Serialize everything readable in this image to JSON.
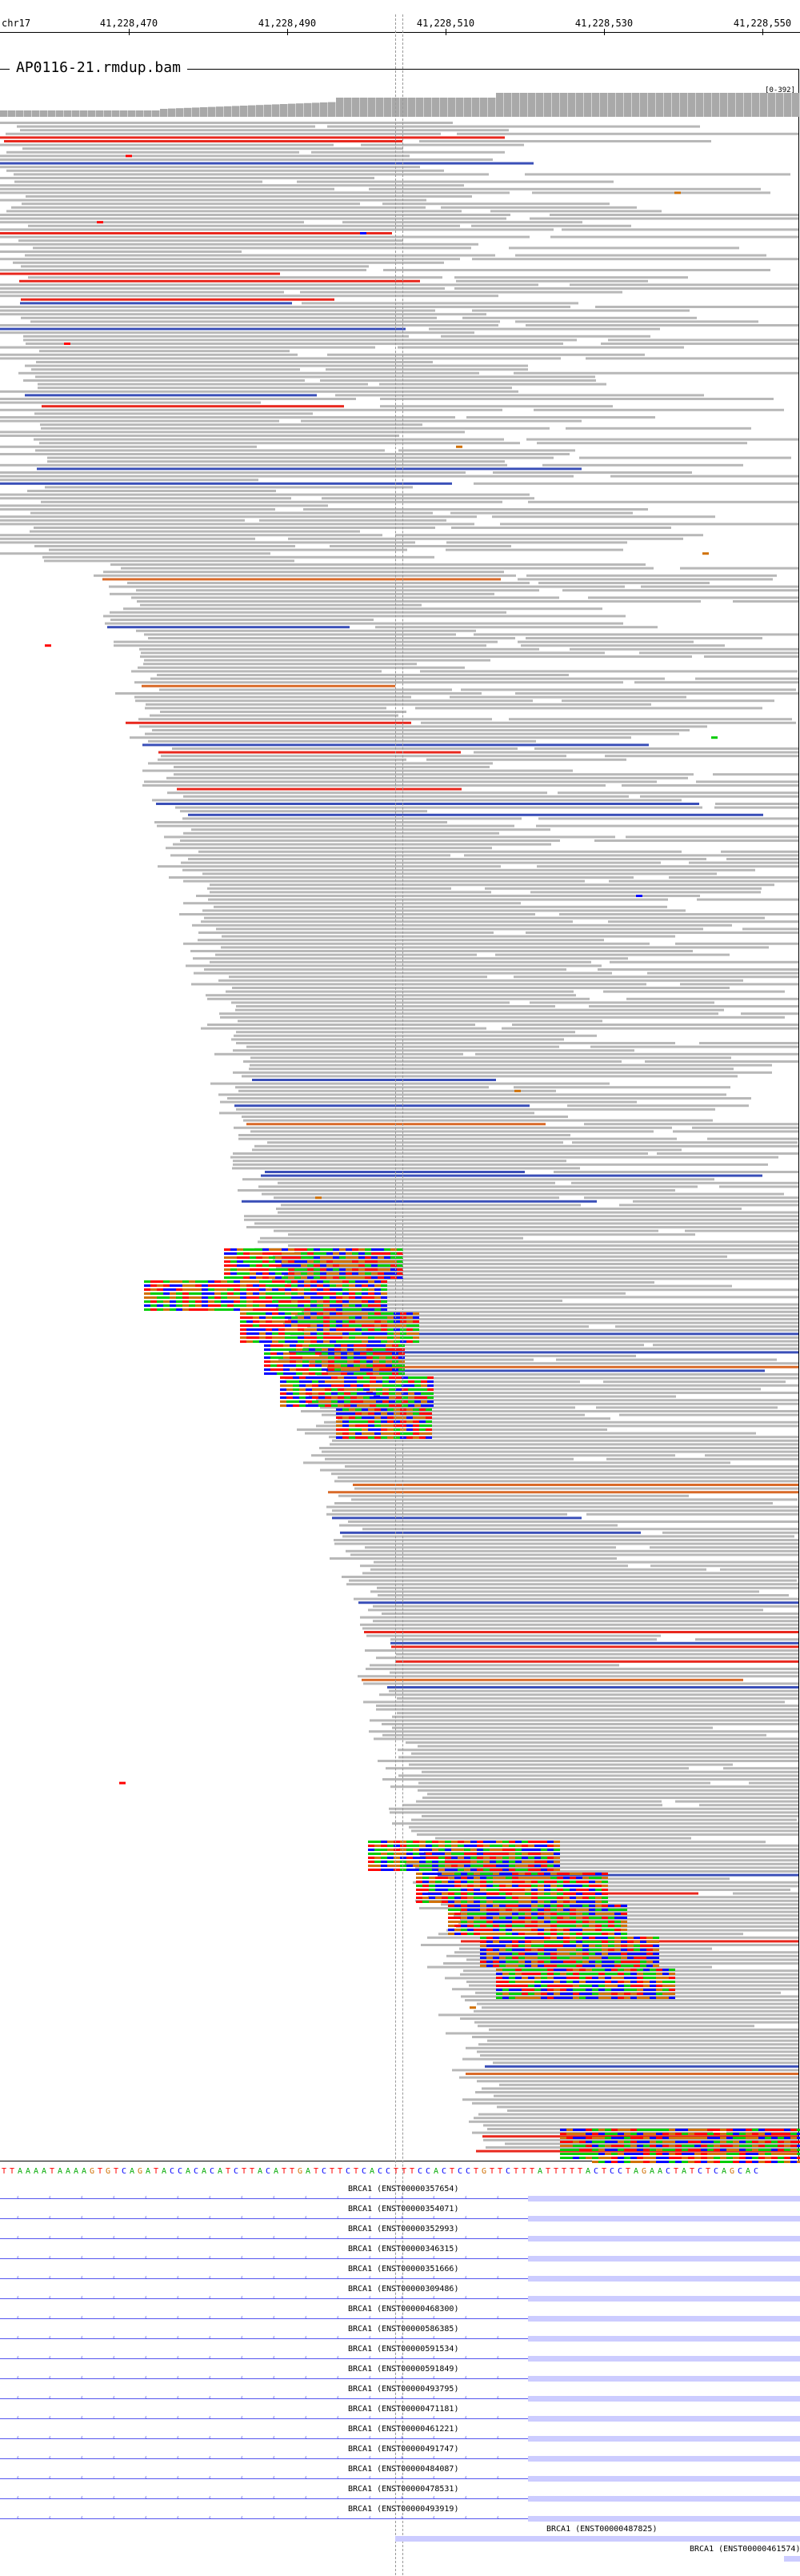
{
  "ruler": {
    "chromosome": "chr17",
    "ticks": [
      "41,228,470",
      "41,228,490",
      "41,228,510",
      "41,228,530",
      "41,228,550"
    ]
  },
  "alignment_track": {
    "title": "AP0116-21.rmdup.bam",
    "coverage_range": "[0-392]"
  },
  "colors": {
    "read": "#b8b8b8",
    "mismatch_a": "#00cc00",
    "mismatch_c": "#0000ff",
    "mismatch_g": "#d17105",
    "mismatch_t": "#ff0000",
    "insert_blue": "#3a4fb8",
    "insert_red": "#e8281e",
    "insert_orange": "#d96b2a",
    "insert_yellow": "#e8c020",
    "insert_lightblue": "#7fb0e0",
    "insert_purple": "#7060b8",
    "gene": "#5555ee",
    "exon": "#ccccff"
  },
  "sequence": "TTAAAATAAAAGTGTCAGATACCACACATCTTACATTGATCTTCTCACCTTTCCACTCCTGTTCTTTATTTTTACTCCTAGAACTATCTCAGCAC",
  "genes": [
    {
      "label": "BRCA1 (ENST00000357654)"
    },
    {
      "label": "BRCA1 (ENST00000354071)"
    },
    {
      "label": "BRCA1 (ENST00000352993)"
    },
    {
      "label": "BRCA1 (ENST00000346315)"
    },
    {
      "label": "BRCA1 (ENST00000351666)"
    },
    {
      "label": "BRCA1 (ENST00000309486)"
    },
    {
      "label": "BRCA1 (ENST00000468300)"
    },
    {
      "label": "BRCA1 (ENST00000586385)"
    },
    {
      "label": "BRCA1 (ENST00000591534)"
    },
    {
      "label": "BRCA1 (ENST00000591849)"
    },
    {
      "label": "BRCA1 (ENST00000493795)"
    },
    {
      "label": "BRCA1 (ENST00000471181)"
    },
    {
      "label": "BRCA1 (ENST00000461221)"
    },
    {
      "label": "BRCA1 (ENST00000491747)"
    },
    {
      "label": "BRCA1 (ENST00000484087)"
    },
    {
      "label": "BRCA1 (ENST00000478531)"
    },
    {
      "label": "BRCA1 (ENST00000493919)"
    },
    {
      "label": "BRCA1 (ENST00000487825)"
    },
    {
      "label": "BRCA1 (ENST00000461574)"
    }
  ]
}
